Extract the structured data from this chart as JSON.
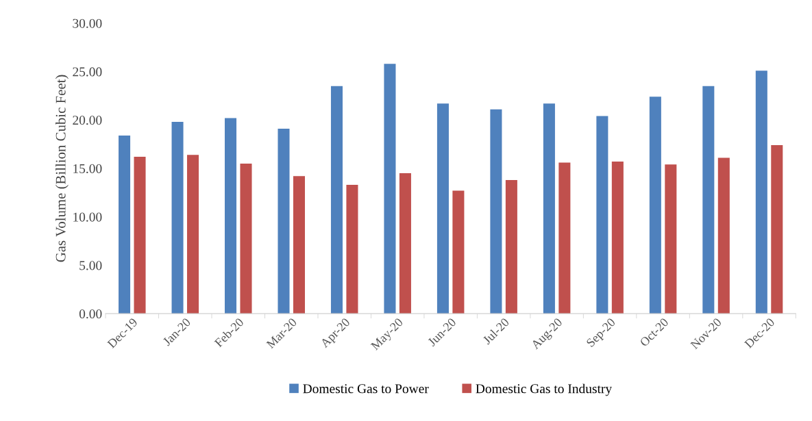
{
  "chart_data": {
    "type": "bar",
    "ylabel": "Gas Volume (Billion Cubic Feet)",
    "categories": [
      "Dec-19",
      "Jan-20",
      "Feb-20",
      "Mar-20",
      "Apr-20",
      "May-20",
      "Jun-20",
      "Jul-20",
      "Aug-20",
      "Sep-20",
      "Oct-20",
      "Nov-20",
      "Dec-20"
    ],
    "series": [
      {
        "name": "Domestic Gas to Power",
        "color": "#4f81bd",
        "values": [
          18.4,
          19.8,
          20.2,
          19.1,
          23.5,
          25.8,
          21.7,
          21.1,
          21.7,
          20.4,
          22.4,
          23.5,
          25.1
        ]
      },
      {
        "name": "Domestic Gas to Industry",
        "color": "#c0504d",
        "values": [
          16.2,
          16.4,
          15.5,
          14.2,
          13.3,
          14.5,
          12.7,
          13.8,
          15.6,
          15.7,
          15.4,
          16.1,
          17.4
        ]
      }
    ],
    "ylim": [
      0,
      30
    ],
    "yticks": [
      {
        "value": 0,
        "label": "0.00"
      },
      {
        "value": 5,
        "label": "5.00"
      },
      {
        "value": 10,
        "label": "10.00"
      },
      {
        "value": 15,
        "label": "15.00"
      },
      {
        "value": 20,
        "label": "20.00"
      },
      {
        "value": 25,
        "label": "25.00"
      },
      {
        "value": 30,
        "label": "30.00"
      }
    ],
    "grid": false,
    "legend": "bottom"
  }
}
